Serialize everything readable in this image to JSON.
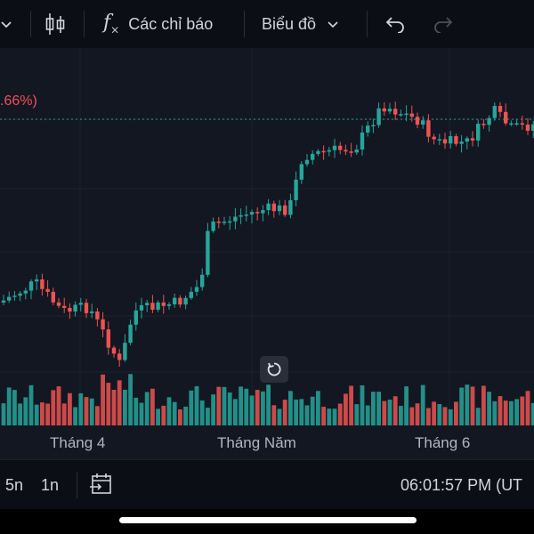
{
  "toolbar": {
    "indicators_label": "Các chỉ báo",
    "chart_label": "Biểu đồ",
    "icons": [
      "chevron-down-icon",
      "candlestick-icon",
      "fx-icon",
      "chevron-down-icon",
      "undo-icon",
      "redo-icon"
    ]
  },
  "chart": {
    "price_change_label": ".66%)",
    "months": [
      "Tháng 4",
      "Tháng Năm",
      "Tháng 6"
    ],
    "colors": {
      "up": "#26a69a",
      "down": "#ef5350",
      "background": "#131722",
      "grid": "#1e222d"
    }
  },
  "chart_data": {
    "type": "candlestick",
    "x_labels": [
      "Tháng 4",
      "Tháng Năm",
      "Tháng 6"
    ],
    "grid": true,
    "note_series": "price candles with volume bars; prices unlabeled"
  },
  "bottom": {
    "ranges": [
      "5n",
      "1n"
    ],
    "clock": "06:01:57 PM (UT"
  }
}
